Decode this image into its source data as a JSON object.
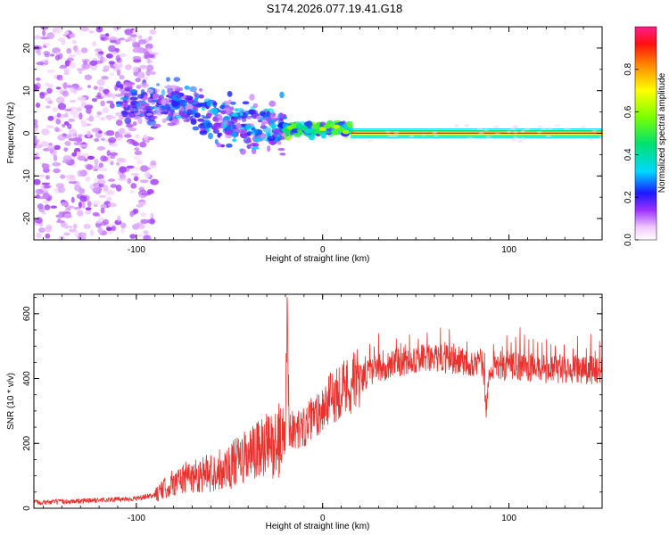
{
  "title": "S174.2026.077.19.41.G18",
  "chart_data": [
    {
      "type": "heatmap",
      "name": "spectrogram",
      "xlabel": "Height of straight line (km)",
      "ylabel": "Frequency (Hz)",
      "xlim": [
        -155,
        150
      ],
      "ylim": [
        -25,
        25
      ],
      "xticks": [
        -100,
        0,
        100
      ],
      "xtick_labels": [
        "-100",
        "0",
        "100"
      ],
      "yticks": [
        20,
        10,
        0,
        -10,
        -20
      ],
      "ytick_labels": [
        "20",
        "10",
        "0",
        "-10",
        "-20"
      ],
      "colorbar": {
        "label": "Normalized spectral amplitude",
        "range": [
          0,
          1
        ],
        "ticks": [
          0.0,
          0.2,
          0.4,
          0.6,
          0.8
        ],
        "tick_labels": [
          "0.0",
          "0.2",
          "0.4",
          "0.6",
          "0.8"
        ]
      },
      "regions": [
        {
          "x": [
            -155,
            -90
          ],
          "freq_center": 0,
          "freq_spread": 25,
          "amplitude": 0.12
        },
        {
          "x": [
            -110,
            -65
          ],
          "freq_center": 6,
          "freq_spread": 5,
          "amplitude": 0.25
        },
        {
          "x": [
            -65,
            -20
          ],
          "freq_center": 3,
          "freq_spread": 6,
          "amplitude": 0.3
        },
        {
          "x": [
            -20,
            15
          ],
          "freq_center": 1,
          "freq_spread": 1.5,
          "amplitude": 0.5
        },
        {
          "x": [
            15,
            150
          ],
          "freq_center": 0,
          "freq_spread": 0.5,
          "amplitude": 1.0
        }
      ]
    },
    {
      "type": "line",
      "name": "snr",
      "xlabel": "Height of straight line (km)",
      "ylabel": "SNR (10 * v/v)",
      "xlim": [
        -155,
        150
      ],
      "ylim": [
        0,
        660
      ],
      "xticks": [
        -100,
        0,
        100
      ],
      "xtick_labels": [
        "-100",
        "0",
        "100"
      ],
      "yticks": [
        0,
        200,
        400,
        600
      ],
      "ytick_labels": [
        "0",
        "200",
        "400",
        "600"
      ],
      "color": "#e8322e",
      "series": [
        {
          "name": "SNR",
          "x": [
            -155,
            -140,
            -120,
            -100,
            -90,
            -85,
            -80,
            -70,
            -60,
            -50,
            -40,
            -30,
            -25,
            -20,
            -19,
            -18,
            -15,
            -10,
            -5,
            0,
            5,
            10,
            20,
            30,
            40,
            50,
            60,
            70,
            80,
            86,
            88,
            90,
            100,
            110,
            120,
            130,
            140,
            150
          ],
          "values": [
            18,
            20,
            25,
            30,
            40,
            60,
            80,
            100,
            110,
            130,
            160,
            190,
            200,
            230,
            650,
            250,
            240,
            250,
            280,
            310,
            340,
            370,
            400,
            430,
            450,
            460,
            460,
            460,
            450,
            445,
            300,
            440,
            440,
            435,
            430,
            430,
            428,
            425
          ]
        }
      ]
    }
  ]
}
